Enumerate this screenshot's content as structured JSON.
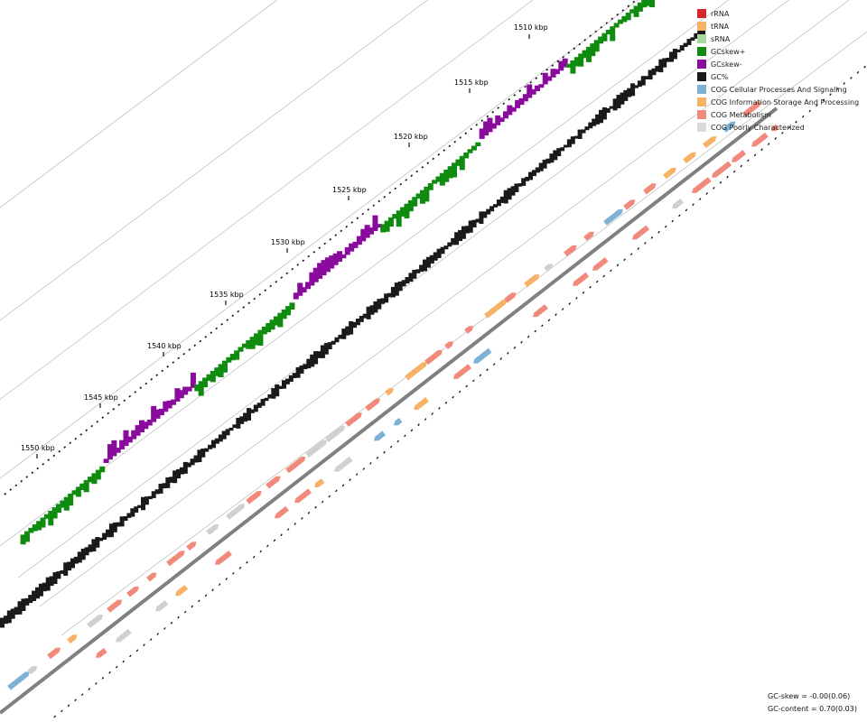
{
  "legend": [
    {
      "label": "rRNA",
      "color": "#d62728"
    },
    {
      "label": "tRNA",
      "color": "#f7b267"
    },
    {
      "label": "sRNA",
      "color": "#a6d99a"
    },
    {
      "label": "GCskew+",
      "color": "#0f8c0f"
    },
    {
      "label": "GCskew-",
      "color": "#8b0a9e"
    },
    {
      "label": "GC%",
      "color": "#1a1a1a"
    },
    {
      "label": "COG Cellular Processes And Signaling",
      "color": "#7fb0d6"
    },
    {
      "label": "COG Information Storage And Processing",
      "color": "#f7b267"
    },
    {
      "label": "COG Metabolism",
      "color": "#f28a7c"
    },
    {
      "label": "COG Poorly Characterized",
      "color": "#d9d9d9"
    }
  ],
  "ticks": [
    "1510 kbp",
    "1515 kbp",
    "1520 kbp",
    "1525 kbp",
    "1530 kbp",
    "1535 kbp",
    "1540 kbp",
    "1545 kbp",
    "1550 kbp"
  ],
  "stats": {
    "gc_skew": "GC-skew = -0.00(0.06)",
    "gc_content": "GC-content = 0.70(0.03)"
  },
  "colors": {
    "skew_pos": "#0f8c0f",
    "skew_neg": "#8b0a9e",
    "gc": "#1a1a1a",
    "backbone": "#808080",
    "guide": "#b0b0b0"
  }
}
